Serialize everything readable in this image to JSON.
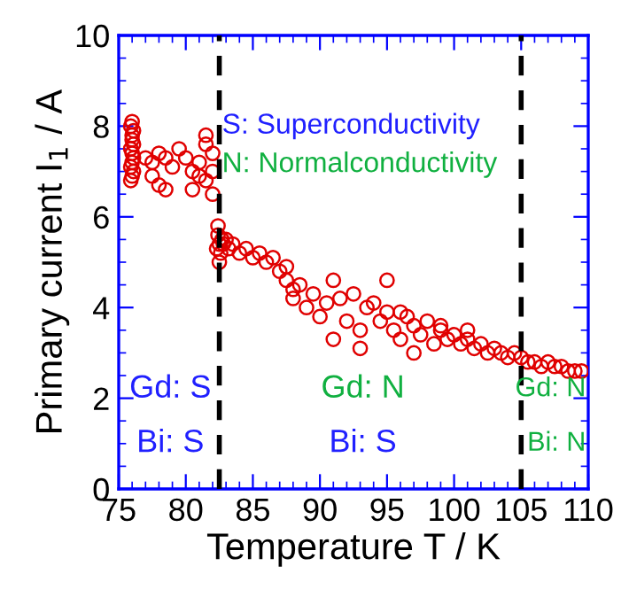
{
  "chart_data": {
    "type": "scatter",
    "xlabel": "Temperature T / K",
    "ylabel": "Primary current I$_{1}$ / A",
    "xlim": [
      75,
      110
    ],
    "xticks": [
      75,
      80,
      85,
      90,
      95,
      100,
      105,
      110
    ],
    "ylim": [
      0,
      10
    ],
    "yticks": [
      0,
      2,
      4,
      6,
      8,
      10
    ],
    "grid": false,
    "marker": "circle",
    "series": [
      {
        "color": "#e00000",
        "x": [
          75.9,
          76.0,
          76.1,
          75.9,
          76.0,
          76.1,
          76.0,
          75.9,
          76.1,
          76.0,
          76.0,
          76.1,
          75.9,
          76.0,
          77.0,
          77.5,
          78.0,
          78.5,
          79.0,
          79.5,
          77.5,
          78.0,
          78.5,
          80.0,
          80.5,
          81.0,
          81.5,
          81.5,
          82.0,
          82.0,
          81.0,
          80.5,
          82.0,
          81.5,
          82.3,
          82.5,
          82.7,
          82.4,
          82.6,
          82.8,
          83.0,
          82.5,
          82.4,
          83.2,
          83.5,
          84.0,
          84.5,
          85.0,
          85.5,
          86.0,
          86.5,
          87.0,
          87.5,
          88.0,
          88.0,
          87.5,
          88.5,
          89.0,
          89.5,
          90.0,
          90.5,
          91.0,
          91.5,
          92.0,
          92.5,
          93.0,
          93.5,
          94.0,
          94.5,
          95.0,
          95.5,
          96.0,
          96.5,
          97.0,
          97.5,
          98.0,
          98.5,
          99.0,
          99.5,
          100.0,
          100.5,
          101.0,
          101.5,
          102.0,
          102.5,
          103.0,
          103.5,
          104.0,
          104.5,
          105.0,
          105.5,
          106.0,
          106.5,
          107.0,
          107.5,
          108.0,
          108.5,
          109.0,
          109.5,
          91.0,
          93.0,
          95.0,
          97.0,
          99.0,
          101.0,
          96.0
        ],
        "values": [
          6.8,
          6.9,
          7.0,
          7.1,
          7.2,
          7.3,
          7.4,
          7.5,
          7.6,
          7.7,
          7.8,
          7.9,
          8.0,
          8.1,
          7.3,
          7.2,
          7.4,
          7.3,
          7.1,
          7.5,
          6.9,
          6.7,
          6.6,
          7.3,
          7.0,
          7.2,
          7.6,
          6.8,
          7.4,
          6.5,
          6.9,
          6.6,
          7.0,
          7.8,
          5.3,
          5.4,
          5.5,
          5.6,
          5.2,
          5.4,
          5.5,
          5.0,
          5.8,
          5.3,
          5.4,
          5.2,
          5.3,
          5.1,
          5.2,
          5.0,
          5.1,
          4.8,
          4.6,
          4.4,
          4.2,
          4.9,
          4.5,
          4.0,
          4.3,
          3.8,
          4.1,
          4.6,
          4.2,
          3.7,
          4.3,
          3.5,
          4.0,
          4.1,
          3.7,
          3.9,
          3.5,
          3.3,
          3.8,
          3.6,
          3.4,
          3.7,
          3.2,
          3.5,
          3.3,
          3.4,
          3.2,
          3.3,
          3.1,
          3.2,
          3.0,
          3.1,
          3.0,
          2.9,
          3.0,
          2.9,
          2.8,
          2.8,
          2.7,
          2.8,
          2.7,
          2.7,
          2.6,
          2.6,
          2.6,
          3.3,
          3.1,
          4.6,
          3.0,
          3.6,
          3.5,
          3.9
        ]
      }
    ],
    "ref_lines": [
      {
        "axis": "x",
        "value": 82.5,
        "color": "#000000",
        "line_style": "dashed"
      },
      {
        "axis": "x",
        "value": 105,
        "color": "#000000",
        "line_style": "dashed"
      }
    ],
    "annotations": [
      "S: Superconductivity",
      "N: Normalconductivity",
      "Gd: S",
      "Bi: S",
      "Gd: N",
      "Bi: S",
      "Gd: N",
      "Bi: N"
    ]
  }
}
